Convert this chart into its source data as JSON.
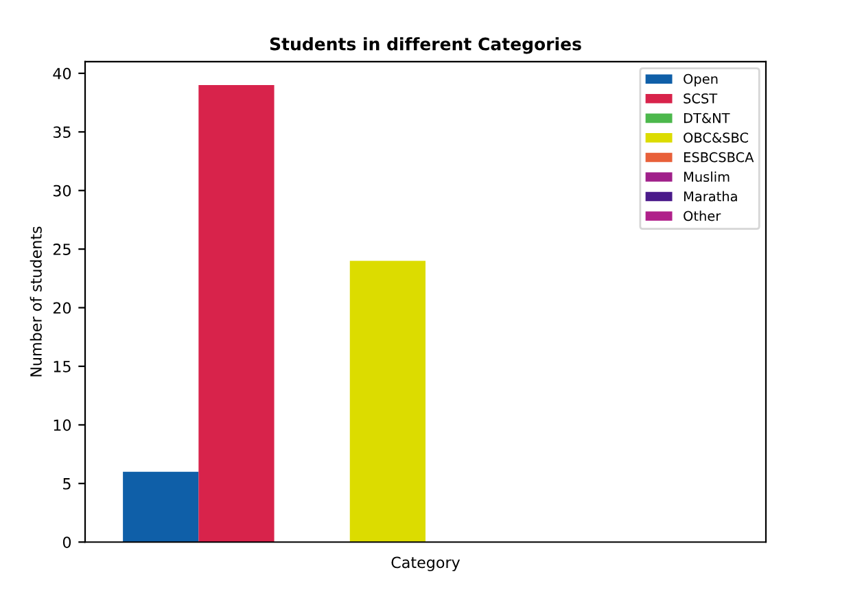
{
  "chart_data": {
    "type": "bar",
    "title": "Students in different Categories",
    "xlabel": "Category",
    "ylabel": "Number of students",
    "categories": [
      null
    ],
    "series": [
      {
        "name": "Open",
        "color": "#0f5fa8",
        "values": [
          6
        ]
      },
      {
        "name": "SCST",
        "color": "#d8234b",
        "values": [
          39
        ]
      },
      {
        "name": "DT&NT",
        "color": "#4cb84c",
        "values": [
          0
        ]
      },
      {
        "name": "OBC&SBC",
        "color": "#dcdc00",
        "values": [
          24
        ]
      },
      {
        "name": "ESBCSBCA",
        "color": "#e8603a",
        "values": [
          0
        ]
      },
      {
        "name": "Muslim",
        "color": "#a0208a",
        "values": [
          0
        ]
      },
      {
        "name": "Maratha",
        "color": "#4a1a8a",
        "values": [
          0
        ]
      },
      {
        "name": "Other",
        "color": "#b0208a",
        "values": [
          0
        ]
      }
    ],
    "ylim": [
      0,
      41
    ],
    "yticks": [
      0,
      5,
      10,
      15,
      20,
      25,
      30,
      35,
      40
    ],
    "grid": false,
    "legend": "top right"
  }
}
